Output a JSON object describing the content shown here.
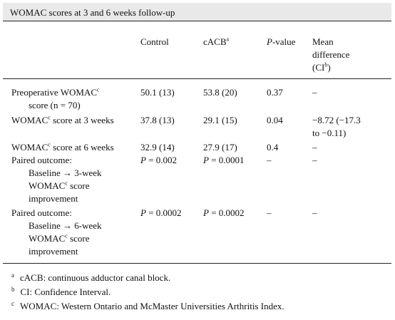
{
  "title": "WOMAC scores at 3 and 6 weeks follow-up",
  "headers": {
    "control": "Control",
    "cacb": "cACB",
    "cacb_sup": "a",
    "p_italic": "P",
    "p_rest": "-value",
    "mean_line1": "Mean",
    "mean_line2": "difference",
    "mean_line3_pre": "(CI",
    "mean_line3_sup": "b",
    "mean_line3_post": ")"
  },
  "rows": [
    {
      "label_lines": [
        "Preoperative WOMAC",
        "score (n = 70)"
      ],
      "label_sup": "c",
      "control": "50.1 (13)",
      "cacb": "53.8 (20)",
      "p": "0.37",
      "mean": [
        "–"
      ]
    },
    {
      "label_pre": "WOMAC",
      "label_sup": "c",
      "label_post": " score at 3 weeks",
      "control": "37.8 (13)",
      "cacb": "29.1 (15)",
      "p": "0.04",
      "mean": [
        "−8.72 (−17.3",
        "to  −0.11)"
      ]
    },
    {
      "label_pre": "WOMAC",
      "label_sup": "c",
      "label_post": " score at 6 weeks",
      "control": "32.9 (14)",
      "cacb": "27.9 (17)",
      "p": "0.4",
      "mean": [
        "–"
      ]
    },
    {
      "label_lines": [
        "Paired outcome:",
        "Baseline → 3-week",
        "WOMAC",
        " score",
        "improvement"
      ],
      "label_sup": "c",
      "control_italic": "P",
      "control_rest": " = 0.002",
      "cacb_italic": "P",
      "cacb_rest": " = 0.0001",
      "p": "–",
      "mean": [
        "–"
      ]
    },
    {
      "label_lines": [
        "Paired outcome:",
        "Baseline → 6-week",
        "WOMAC",
        " score",
        "improvement"
      ],
      "label_sup": "c",
      "control_italic": "P",
      "control_rest": " = 0.0002",
      "cacb_italic": "P",
      "cacb_rest": " = 0.0002",
      "p": "–",
      "mean": [
        "–"
      ]
    }
  ],
  "footnotes": [
    {
      "mark": "a",
      "text": "cACB: continuous adductor canal block."
    },
    {
      "mark": "b",
      "text": "CI: Confidence Interval."
    },
    {
      "mark": "c",
      "text": "WOMAC: Western Ontario and McMaster Universities Arthritis Index."
    }
  ]
}
